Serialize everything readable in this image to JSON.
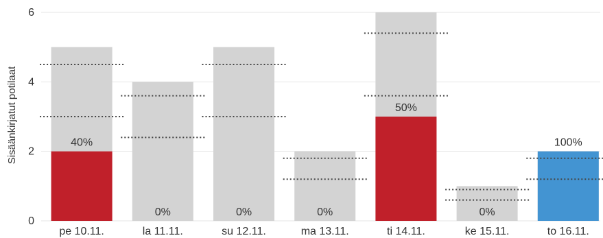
{
  "chart_data": {
    "type": "bar",
    "ylabel": "Sisäänkirjatut potilaat",
    "ylim": [
      0,
      6
    ],
    "yticks": [
      0,
      2,
      4,
      6
    ],
    "grid": true,
    "categories": [
      "pe 10.11.",
      "la 11.11.",
      "su 12.11.",
      "ma 13.11.",
      "ti 14.11.",
      "ke 15.11.",
      "to 16.11."
    ],
    "totals": [
      5,
      4,
      5,
      2,
      6,
      1,
      2
    ],
    "highlighted": [
      2,
      0,
      0,
      0,
      3,
      0,
      2
    ],
    "percent_labels": [
      "40%",
      "0%",
      "0%",
      "0%",
      "50%",
      "0%",
      "100%"
    ],
    "reference_lines": [
      [
        3.0,
        4.5
      ],
      [
        2.4,
        3.6
      ],
      [
        3.0,
        4.5
      ],
      [
        1.2,
        1.8
      ],
      [
        3.6,
        5.4
      ],
      [
        0.6,
        0.9
      ],
      [
        1.2,
        1.8
      ]
    ],
    "colors": {
      "total": "#d3d3d3",
      "highlight": "#c0202a",
      "highlight_last": "#4394d2",
      "grid": "#e6e6e6",
      "reference": "#444444"
    }
  }
}
